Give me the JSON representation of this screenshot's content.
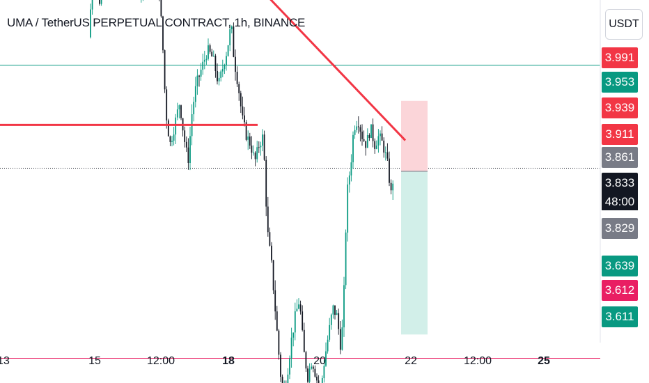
{
  "title": "UMA / TetherUS PERPETUAL CONTRACT, 1h, BINANCE",
  "currency_button": "USDT",
  "colors": {
    "up": "#089981",
    "down": "#131722",
    "trendline": "#f23645",
    "horizontal_line": "#089981",
    "support_line": "#e91e63",
    "stop_zone": "#fbd5d9",
    "target_zone": "#d2efe9"
  },
  "price_labels": [
    {
      "value": "3.991",
      "color": "#f23645"
    },
    {
      "value": "3.953",
      "color": "#089981"
    },
    {
      "value": "3.939",
      "color": "#f23645"
    },
    {
      "value": "3.911",
      "color": "#f23645"
    },
    {
      "value": "3.861",
      "color": "#787b86"
    },
    {
      "value": "3.833",
      "color": "#131722"
    },
    {
      "value": "3.829",
      "color": "#787b86"
    },
    {
      "value": "3.639",
      "color": "#089981"
    },
    {
      "value": "3.612",
      "color": "#e91e63"
    },
    {
      "value": "3.611",
      "color": "#089981"
    }
  ],
  "countdown": "48:00",
  "x_ticks": [
    {
      "label": "13",
      "bold": false
    },
    {
      "label": "15",
      "bold": false
    },
    {
      "label": "12:00",
      "bold": false
    },
    {
      "label": "18",
      "bold": true
    },
    {
      "label": "20",
      "bold": false
    },
    {
      "label": "22",
      "bold": false
    },
    {
      "label": "12:00",
      "bold": false
    },
    {
      "label": "25",
      "bold": true
    }
  ],
  "chart_data": {
    "type": "candlestick",
    "title": "UMA / TetherUS PERPETUAL CONTRACT, 1h, BINANCE",
    "interval": "1h",
    "y_unit": "USDT",
    "y_range": [
      3.57,
      4.02
    ],
    "last_price": 3.833,
    "horizontal_lines": [
      {
        "price": 3.953,
        "color": "#089981"
      },
      {
        "price": 3.612,
        "color": "#e91e63"
      }
    ],
    "drawings": {
      "trendline": {
        "from": {
          "time": "2024-04-16 23:00",
          "price": 4.06
        },
        "to": {
          "time": "2024-04-21 13:00",
          "price": 3.865
        }
      },
      "horizontal_segment": {
        "from_time": "2024-04-12 00:00",
        "to_time": "2024-04-18 13:00",
        "price": 3.883
      },
      "position": {
        "entry": 3.829,
        "stop": 3.911,
        "target": 3.639
      }
    }
  }
}
